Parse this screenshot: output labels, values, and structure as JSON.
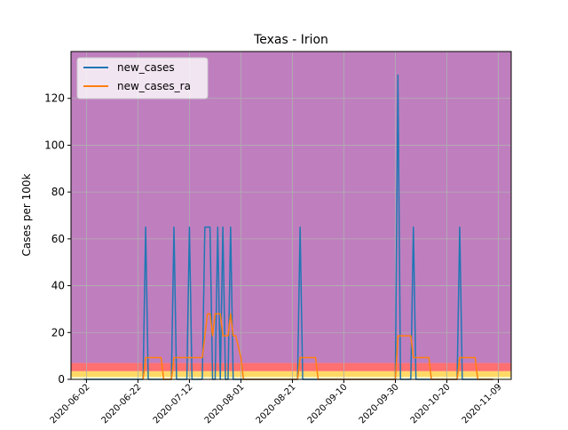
{
  "chart_data": {
    "type": "line",
    "title": "Texas - Irion",
    "xlabel": "",
    "ylabel": "Cases per 100k",
    "x_ticks": [
      "2020-06-02",
      "2020-06-22",
      "2020-07-12",
      "2020-08-01",
      "2020-08-21",
      "2020-09-10",
      "2020-09-30",
      "2020-10-20",
      "2020-11-09"
    ],
    "xlim": [
      "2020-05-27",
      "2020-11-14"
    ],
    "ylim": [
      0,
      140
    ],
    "y_ticks": [
      0,
      20,
      40,
      60,
      80,
      100,
      120
    ],
    "grid": true,
    "legend": "upper-left",
    "background_bands": [
      {
        "from": 0,
        "to": 1,
        "color": "#ffffe0"
      },
      {
        "from": 1,
        "to": 3.5,
        "color": "#ffd966"
      },
      {
        "from": 3.5,
        "to": 7,
        "color": "#ff7070"
      },
      {
        "from": 7,
        "to": 140,
        "color": "#bf7fbf"
      }
    ],
    "series": [
      {
        "name": "new_cases",
        "color": "#1f77b4",
        "points": [
          [
            "2020-06-01",
            0
          ],
          [
            "2020-06-06",
            0
          ],
          [
            "2020-06-24",
            0
          ],
          [
            "2020-06-25",
            65
          ],
          [
            "2020-06-26",
            0
          ],
          [
            "2020-07-05",
            0
          ],
          [
            "2020-07-06",
            65
          ],
          [
            "2020-07-07",
            0
          ],
          [
            "2020-07-11",
            0
          ],
          [
            "2020-07-12",
            65
          ],
          [
            "2020-07-13",
            0
          ],
          [
            "2020-07-17",
            0
          ],
          [
            "2020-07-18",
            65
          ],
          [
            "2020-07-20",
            65
          ],
          [
            "2020-07-21",
            0
          ],
          [
            "2020-07-22",
            0
          ],
          [
            "2020-07-23",
            65
          ],
          [
            "2020-07-24",
            0
          ],
          [
            "2020-07-25",
            65
          ],
          [
            "2020-07-26",
            0
          ],
          [
            "2020-07-27",
            0
          ],
          [
            "2020-07-28",
            65
          ],
          [
            "2020-07-29",
            0
          ],
          [
            "2020-08-23",
            0
          ],
          [
            "2020-08-24",
            65
          ],
          [
            "2020-08-25",
            0
          ],
          [
            "2020-09-30",
            0
          ],
          [
            "2020-10-01",
            130
          ],
          [
            "2020-10-02",
            0
          ],
          [
            "2020-10-06",
            0
          ],
          [
            "2020-10-07",
            65
          ],
          [
            "2020-10-08",
            0
          ],
          [
            "2020-10-24",
            0
          ],
          [
            "2020-10-25",
            65
          ],
          [
            "2020-10-26",
            0
          ],
          [
            "2020-11-07",
            0
          ]
        ]
      },
      {
        "name": "new_cases_ra",
        "color": "#ff7f0e",
        "points": [
          [
            "2020-06-24",
            0
          ],
          [
            "2020-06-25",
            9.3
          ],
          [
            "2020-07-01",
            9.3
          ],
          [
            "2020-07-02",
            0
          ],
          [
            "2020-07-05",
            0
          ],
          [
            "2020-07-06",
            9.3
          ],
          [
            "2020-07-17",
            9.3
          ],
          [
            "2020-07-19",
            28
          ],
          [
            "2020-07-20",
            28
          ],
          [
            "2020-07-21",
            18.6
          ],
          [
            "2020-07-22",
            28
          ],
          [
            "2020-07-24",
            28
          ],
          [
            "2020-07-25",
            18.6
          ],
          [
            "2020-07-27",
            18.6
          ],
          [
            "2020-07-28",
            28
          ],
          [
            "2020-07-29",
            18.6
          ],
          [
            "2020-07-30",
            18.6
          ],
          [
            "2020-08-01",
            9.3
          ],
          [
            "2020-08-02",
            0
          ],
          [
            "2020-08-23",
            0
          ],
          [
            "2020-08-24",
            9.3
          ],
          [
            "2020-08-30",
            9.3
          ],
          [
            "2020-08-31",
            0
          ],
          [
            "2020-09-30",
            0
          ],
          [
            "2020-10-01",
            18.6
          ],
          [
            "2020-10-06",
            18.6
          ],
          [
            "2020-10-07",
            9.3
          ],
          [
            "2020-10-13",
            9.3
          ],
          [
            "2020-10-14",
            0
          ],
          [
            "2020-10-24",
            0
          ],
          [
            "2020-10-25",
            9.3
          ],
          [
            "2020-10-31",
            9.3
          ],
          [
            "2020-11-01",
            0
          ],
          [
            "2020-11-07",
            0
          ]
        ]
      }
    ]
  }
}
